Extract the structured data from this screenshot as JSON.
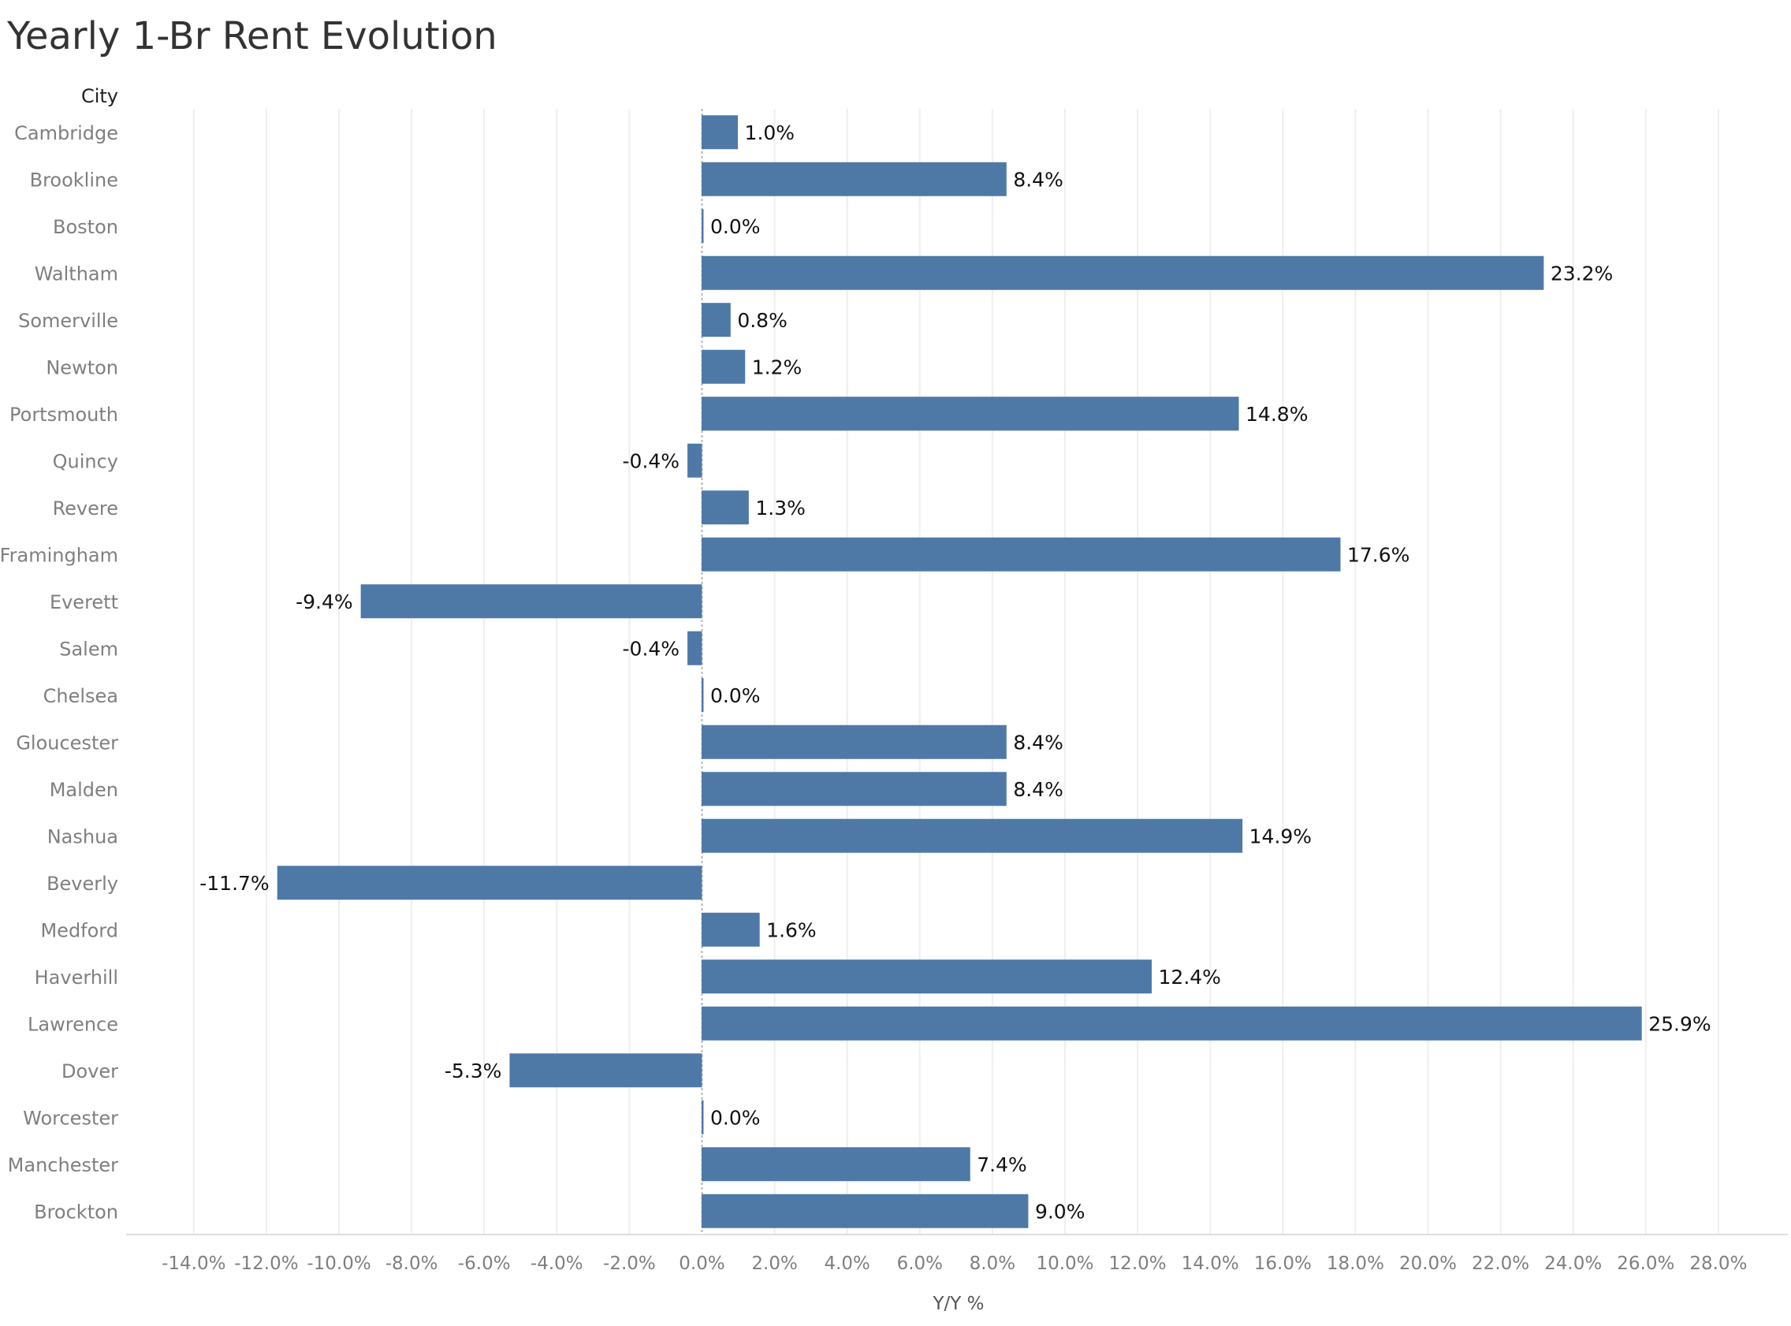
{
  "chart_data": {
    "type": "bar",
    "orientation": "horizontal",
    "title": "Yearly 1-Br Rent Evolution",
    "category_header": "City",
    "xlabel": "Y/Y %",
    "ylabel": "City",
    "xlim": [
      -14.0,
      28.0
    ],
    "grid": true,
    "bar_color": "#4e79a7",
    "categories": [
      "Cambridge",
      "Brookline",
      "Boston",
      "Waltham",
      "Somerville",
      "Newton",
      "Portsmouth",
      "Quincy",
      "Revere",
      "Framingham",
      "Everett",
      "Salem",
      "Chelsea",
      "Gloucester",
      "Malden",
      "Nashua",
      "Beverly",
      "Medford",
      "Haverhill",
      "Lawrence",
      "Dover",
      "Worcester",
      "Manchester",
      "Brockton"
    ],
    "values": [
      1.0,
      8.4,
      0.0,
      23.2,
      0.8,
      1.2,
      14.8,
      -0.4,
      1.3,
      17.6,
      -9.4,
      -0.4,
      0.0,
      8.4,
      8.4,
      14.9,
      -11.7,
      1.6,
      12.4,
      25.9,
      -5.3,
      0.0,
      7.4,
      9.0
    ],
    "value_labels": [
      "1.0%",
      "8.4%",
      "0.0%",
      "23.2%",
      "0.8%",
      "1.2%",
      "14.8%",
      "-0.4%",
      "1.3%",
      "17.6%",
      "-9.4%",
      "-0.4%",
      "0.0%",
      "8.4%",
      "8.4%",
      "14.9%",
      "-11.7%",
      "1.6%",
      "12.4%",
      "25.9%",
      "-5.3%",
      "0.0%",
      "7.4%",
      "9.0%"
    ],
    "x_ticks": [
      -14,
      -12,
      -10,
      -8,
      -6,
      -4,
      -2,
      0,
      2,
      4,
      6,
      8,
      10,
      12,
      14,
      16,
      18,
      20,
      22,
      24,
      26,
      28
    ],
    "x_tick_labels": [
      "-14.0%",
      "-12.0%",
      "-10.0%",
      "-8.0%",
      "-6.0%",
      "-4.0%",
      "-2.0%",
      "0.0%",
      "2.0%",
      "4.0%",
      "6.0%",
      "8.0%",
      "10.0%",
      "12.0%",
      "14.0%",
      "16.0%",
      "18.0%",
      "20.0%",
      "22.0%",
      "24.0%",
      "26.0%",
      "28.0%"
    ]
  }
}
